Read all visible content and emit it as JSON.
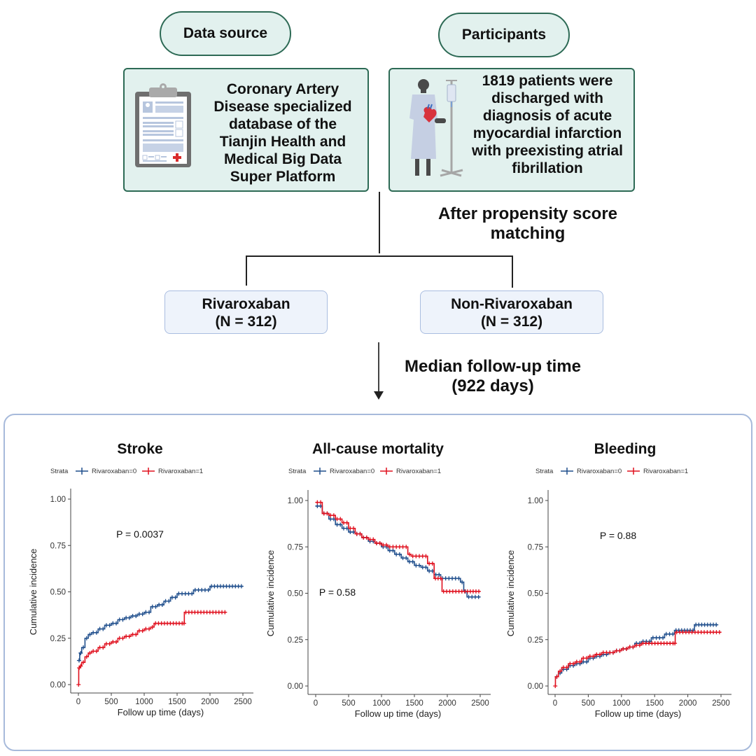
{
  "flowchart": {
    "data_source": {
      "header": "Data source",
      "text_lines": [
        "Coronary Artery",
        "Disease specialized",
        "database of the",
        "Tianjin Health and",
        "Medical Big Data",
        "Super Platform"
      ],
      "icon": "clipboard-medical-record-icon"
    },
    "participants": {
      "header": "Participants",
      "text_lines": [
        "1819 patients were",
        "discharged with",
        "diagnosis of acute",
        "myocardial infarction",
        "with preexisting atrial",
        "fibrillation"
      ],
      "icon": "patient-with-iv-drip-icon"
    },
    "matching_label_lines": [
      "After propensity score",
      "matching"
    ],
    "groups": [
      {
        "name": "Rivaroxaban",
        "n": "(N = 312)"
      },
      {
        "name": "Non-Rivaroxaban",
        "n": "(N = 312)"
      }
    ],
    "followup_label_lines": [
      "Median follow-up time",
      "(922 days)"
    ]
  },
  "colors": {
    "teal_fill": "#e2f1ee",
    "teal_border": "#2d6a55",
    "group_fill": "#eef3fb",
    "group_border": "#a9bde0",
    "series0": "#1f4e8c",
    "series1": "#e0101e"
  },
  "chart_data": [
    {
      "type": "line",
      "title": "Stroke",
      "legend": {
        "title": "Strata",
        "entries": [
          "Rivaroxaban=0",
          "Rivaroxaban=1"
        ],
        "position": "top"
      },
      "xlabel": "Follow up time (days)",
      "ylabel": "Cumulative incidence",
      "xlim": [
        0,
        2500
      ],
      "ylim": [
        0,
        1
      ],
      "xticks": [
        "0",
        "500",
        "1000",
        "1500",
        "2000",
        "2500"
      ],
      "yticks": [
        "0.00",
        "0.25",
        "0.50",
        "0.75",
        "1.00"
      ],
      "annotation": "P = 0.0037",
      "series": [
        {
          "name": "Rivaroxaban=0",
          "x": [
            0,
            20,
            50,
            100,
            150,
            200,
            300,
            400,
            500,
            600,
            700,
            800,
            900,
            1000,
            1100,
            1200,
            1300,
            1400,
            1500,
            1600,
            1750,
            1950,
            2000,
            2500
          ],
          "y": [
            0.13,
            0.17,
            0.2,
            0.25,
            0.27,
            0.28,
            0.3,
            0.32,
            0.33,
            0.35,
            0.36,
            0.37,
            0.38,
            0.39,
            0.42,
            0.43,
            0.45,
            0.47,
            0.49,
            0.49,
            0.51,
            0.51,
            0.53,
            0.53
          ]
        },
        {
          "name": "Rivaroxaban=1",
          "x": [
            0,
            5,
            20,
            50,
            100,
            150,
            200,
            300,
            400,
            500,
            600,
            700,
            800,
            900,
            1000,
            1100,
            1150,
            1600,
            1610,
            2250
          ],
          "y": [
            0.0,
            0.09,
            0.1,
            0.12,
            0.15,
            0.17,
            0.18,
            0.2,
            0.22,
            0.23,
            0.25,
            0.26,
            0.27,
            0.29,
            0.3,
            0.31,
            0.33,
            0.33,
            0.39,
            0.39
          ]
        }
      ]
    },
    {
      "type": "line",
      "title": "All-cause mortality",
      "legend": {
        "title": "Strata",
        "entries": [
          "Rivaroxaban=0",
          "Rivaroxaban=1"
        ],
        "position": "top"
      },
      "xlabel": "Follow up time (days)",
      "ylabel": "Cumulative incidence",
      "xlim": [
        0,
        2500
      ],
      "ylim": [
        0,
        1
      ],
      "xticks": [
        "0",
        "500",
        "1000",
        "1500",
        "2000",
        "2500"
      ],
      "yticks": [
        "0.00",
        "0.25",
        "0.50",
        "0.75",
        "1.00"
      ],
      "annotation": "P = 0.58",
      "series": [
        {
          "name": "Rivaroxaban=0",
          "x": [
            0,
            100,
            200,
            300,
            400,
            500,
            600,
            700,
            800,
            900,
            1000,
            1100,
            1200,
            1300,
            1400,
            1500,
            1600,
            1700,
            1800,
            1900,
            2100,
            2200,
            2250,
            2300,
            2500
          ],
          "y": [
            0.97,
            0.93,
            0.9,
            0.87,
            0.85,
            0.83,
            0.82,
            0.8,
            0.78,
            0.77,
            0.75,
            0.73,
            0.71,
            0.69,
            0.67,
            0.65,
            0.64,
            0.62,
            0.6,
            0.58,
            0.58,
            0.56,
            0.51,
            0.48,
            0.48
          ]
        },
        {
          "name": "Rivaroxaban=1",
          "x": [
            0,
            100,
            200,
            300,
            400,
            500,
            600,
            700,
            800,
            900,
            1000,
            1100,
            1300,
            1400,
            1450,
            1650,
            1700,
            1800,
            1920,
            2200,
            2500
          ],
          "y": [
            0.99,
            0.93,
            0.92,
            0.9,
            0.88,
            0.85,
            0.82,
            0.8,
            0.79,
            0.77,
            0.76,
            0.75,
            0.75,
            0.71,
            0.7,
            0.7,
            0.66,
            0.58,
            0.51,
            0.51,
            0.51
          ]
        }
      ]
    },
    {
      "type": "line",
      "title": "Bleeding",
      "legend": {
        "title": "Strata",
        "entries": [
          "Rivaroxaban=0",
          "Rivaroxaban=1"
        ],
        "position": "top"
      },
      "xlabel": "Follow up time (days)",
      "ylabel": "Cumulative incidence",
      "xlim": [
        0,
        2500
      ],
      "ylim": [
        0,
        1
      ],
      "xticks": [
        "0",
        "500",
        "1000",
        "1500",
        "2000",
        "2500"
      ],
      "yticks": [
        "0.00",
        "0.25",
        "0.50",
        "0.75",
        "1.00"
      ],
      "annotation": "P = 0.88",
      "series": [
        {
          "name": "Rivaroxaban=0",
          "x": [
            0,
            50,
            100,
            200,
            300,
            400,
            500,
            600,
            700,
            800,
            900,
            1000,
            1100,
            1200,
            1300,
            1450,
            1650,
            1800,
            2100,
            2450
          ],
          "y": [
            0.05,
            0.07,
            0.09,
            0.11,
            0.12,
            0.13,
            0.15,
            0.16,
            0.17,
            0.18,
            0.19,
            0.2,
            0.21,
            0.23,
            0.24,
            0.26,
            0.28,
            0.3,
            0.33,
            0.33
          ]
        },
        {
          "name": "Rivaroxaban=1",
          "x": [
            0,
            5,
            50,
            100,
            200,
            300,
            400,
            500,
            600,
            700,
            800,
            900,
            1000,
            1100,
            1200,
            1300,
            1800,
            1810,
            2500
          ],
          "y": [
            0.0,
            0.05,
            0.08,
            0.1,
            0.12,
            0.13,
            0.15,
            0.16,
            0.17,
            0.18,
            0.18,
            0.19,
            0.2,
            0.21,
            0.22,
            0.23,
            0.23,
            0.29,
            0.29
          ]
        }
      ]
    }
  ]
}
